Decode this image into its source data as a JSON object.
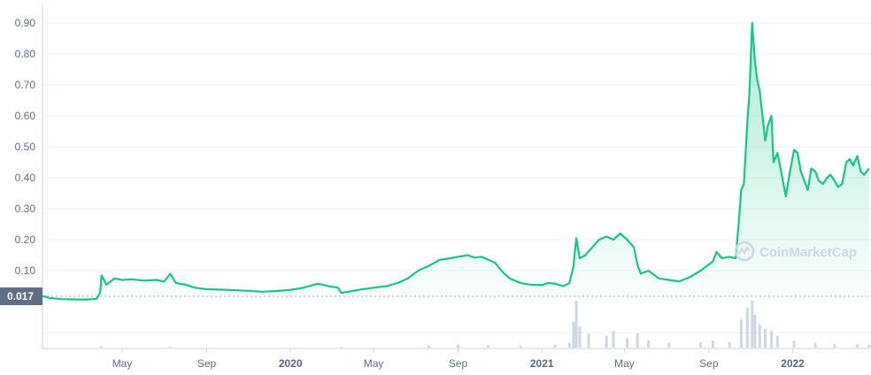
{
  "chart_data": {
    "type": "area",
    "y_ticks": [
      "0.90",
      "0.80",
      "0.70",
      "0.60",
      "0.50",
      "0.40",
      "0.30",
      "0.20",
      "0.10"
    ],
    "ylim": [
      0,
      0.93
    ],
    "reference_label": "0.017",
    "reference_value": 0.017,
    "x_ticks": [
      {
        "label": "May",
        "date": "2019-05-01",
        "major": false
      },
      {
        "label": "Sep",
        "date": "2019-09-01",
        "major": false
      },
      {
        "label": "2020",
        "date": "2020-01-01",
        "major": true
      },
      {
        "label": "May",
        "date": "2020-05-01",
        "major": false
      },
      {
        "label": "Sep",
        "date": "2020-09-01",
        "major": false
      },
      {
        "label": "2021",
        "date": "2021-01-01",
        "major": true
      },
      {
        "label": "May",
        "date": "2021-05-01",
        "major": false
      },
      {
        "label": "Sep",
        "date": "2021-09-01",
        "major": false
      },
      {
        "label": "2022",
        "date": "2022-01-01",
        "major": true
      }
    ],
    "xlim": [
      "2019-01-05",
      "2022-04-25"
    ],
    "line_color": "#16c784",
    "watermark": "CoinMarketCap",
    "price_series": [
      [
        "2019-01-05",
        0.018
      ],
      [
        "2019-01-15",
        0.012
      ],
      [
        "2019-02-01",
        0.008
      ],
      [
        "2019-02-20",
        0.007
      ],
      [
        "2019-03-10",
        0.007
      ],
      [
        "2019-03-25",
        0.009
      ],
      [
        "2019-03-30",
        0.03
      ],
      [
        "2019-04-01",
        0.085
      ],
      [
        "2019-04-08",
        0.055
      ],
      [
        "2019-04-20",
        0.075
      ],
      [
        "2019-05-01",
        0.07
      ],
      [
        "2019-05-15",
        0.072
      ],
      [
        "2019-06-01",
        0.068
      ],
      [
        "2019-06-20",
        0.07
      ],
      [
        "2019-07-01",
        0.065
      ],
      [
        "2019-07-10",
        0.09
      ],
      [
        "2019-07-18",
        0.06
      ],
      [
        "2019-08-01",
        0.055
      ],
      [
        "2019-08-15",
        0.045
      ],
      [
        "2019-09-01",
        0.04
      ],
      [
        "2019-10-01",
        0.038
      ],
      [
        "2019-11-01",
        0.035
      ],
      [
        "2019-11-20",
        0.032
      ],
      [
        "2019-12-10",
        0.034
      ],
      [
        "2020-01-01",
        0.038
      ],
      [
        "2020-01-20",
        0.045
      ],
      [
        "2020-02-10",
        0.058
      ],
      [
        "2020-02-25",
        0.05
      ],
      [
        "2020-03-10",
        0.045
      ],
      [
        "2020-03-15",
        0.028
      ],
      [
        "2020-03-25",
        0.032
      ],
      [
        "2020-04-15",
        0.04
      ],
      [
        "2020-05-01",
        0.045
      ],
      [
        "2020-05-20",
        0.05
      ],
      [
        "2020-06-05",
        0.06
      ],
      [
        "2020-06-20",
        0.075
      ],
      [
        "2020-07-05",
        0.1
      ],
      [
        "2020-07-20",
        0.115
      ],
      [
        "2020-08-05",
        0.135
      ],
      [
        "2020-08-20",
        0.14
      ],
      [
        "2020-09-01",
        0.145
      ],
      [
        "2020-09-15",
        0.15
      ],
      [
        "2020-09-25",
        0.142
      ],
      [
        "2020-10-05",
        0.145
      ],
      [
        "2020-10-15",
        0.135
      ],
      [
        "2020-10-25",
        0.125
      ],
      [
        "2020-11-05",
        0.095
      ],
      [
        "2020-11-15",
        0.075
      ],
      [
        "2020-12-01",
        0.06
      ],
      [
        "2020-12-15",
        0.055
      ],
      [
        "2021-01-01",
        0.053
      ],
      [
        "2021-01-10",
        0.06
      ],
      [
        "2021-01-20",
        0.058
      ],
      [
        "2021-02-01",
        0.05
      ],
      [
        "2021-02-10",
        0.06
      ],
      [
        "2021-02-16",
        0.115
      ],
      [
        "2021-02-20",
        0.205
      ],
      [
        "2021-02-25",
        0.14
      ],
      [
        "2021-03-05",
        0.15
      ],
      [
        "2021-03-15",
        0.175
      ],
      [
        "2021-03-25",
        0.2
      ],
      [
        "2021-04-05",
        0.21
      ],
      [
        "2021-04-15",
        0.2
      ],
      [
        "2021-04-25",
        0.22
      ],
      [
        "2021-05-05",
        0.2
      ],
      [
        "2021-05-15",
        0.175
      ],
      [
        "2021-05-20",
        0.12
      ],
      [
        "2021-05-25",
        0.09
      ],
      [
        "2021-06-05",
        0.1
      ],
      [
        "2021-06-20",
        0.075
      ],
      [
        "2021-07-05",
        0.07
      ],
      [
        "2021-07-20",
        0.065
      ],
      [
        "2021-08-05",
        0.08
      ],
      [
        "2021-08-20",
        0.1
      ],
      [
        "2021-09-01",
        0.12
      ],
      [
        "2021-09-07",
        0.13
      ],
      [
        "2021-09-12",
        0.16
      ],
      [
        "2021-09-20",
        0.14
      ],
      [
        "2021-10-01",
        0.145
      ],
      [
        "2021-10-10",
        0.14
      ],
      [
        "2021-10-15",
        0.27
      ],
      [
        "2021-10-18",
        0.36
      ],
      [
        "2021-10-22",
        0.38
      ],
      [
        "2021-10-27",
        0.58
      ],
      [
        "2021-10-30",
        0.67
      ],
      [
        "2021-11-03",
        0.9
      ],
      [
        "2021-11-07",
        0.78
      ],
      [
        "2021-11-10",
        0.72
      ],
      [
        "2021-11-14",
        0.68
      ],
      [
        "2021-11-18",
        0.6
      ],
      [
        "2021-11-22",
        0.52
      ],
      [
        "2021-11-26",
        0.57
      ],
      [
        "2021-12-01",
        0.6
      ],
      [
        "2021-12-04",
        0.45
      ],
      [
        "2021-12-10",
        0.48
      ],
      [
        "2021-12-16",
        0.41
      ],
      [
        "2021-12-22",
        0.34
      ],
      [
        "2021-12-28",
        0.42
      ],
      [
        "2022-01-03",
        0.49
      ],
      [
        "2022-01-08",
        0.48
      ],
      [
        "2022-01-13",
        0.42
      ],
      [
        "2022-01-18",
        0.39
      ],
      [
        "2022-01-23",
        0.36
      ],
      [
        "2022-01-28",
        0.43
      ],
      [
        "2022-02-03",
        0.42
      ],
      [
        "2022-02-08",
        0.39
      ],
      [
        "2022-02-14",
        0.38
      ],
      [
        "2022-02-20",
        0.4
      ],
      [
        "2022-02-25",
        0.41
      ],
      [
        "2022-03-03",
        0.39
      ],
      [
        "2022-03-08",
        0.37
      ],
      [
        "2022-03-14",
        0.38
      ],
      [
        "2022-03-20",
        0.45
      ],
      [
        "2022-03-25",
        0.46
      ],
      [
        "2022-03-30",
        0.44
      ],
      [
        "2022-04-05",
        0.47
      ],
      [
        "2022-04-10",
        0.42
      ],
      [
        "2022-04-15",
        0.41
      ],
      [
        "2022-04-22",
        0.43
      ]
    ],
    "volume_series": [
      [
        "2019-01-05",
        0.01
      ],
      [
        "2019-04-01",
        0.03
      ],
      [
        "2019-07-10",
        0.02
      ],
      [
        "2020-03-15",
        0.02
      ],
      [
        "2020-07-20",
        0.05
      ],
      [
        "2020-09-01",
        0.06
      ],
      [
        "2020-10-15",
        0.05
      ],
      [
        "2020-12-01",
        0.04
      ],
      [
        "2021-01-20",
        0.06
      ],
      [
        "2021-02-10",
        0.1
      ],
      [
        "2021-02-16",
        0.55
      ],
      [
        "2021-02-20",
        1.0
      ],
      [
        "2021-02-25",
        0.45
      ],
      [
        "2021-03-10",
        0.3
      ],
      [
        "2021-04-05",
        0.25
      ],
      [
        "2021-04-15",
        0.35
      ],
      [
        "2021-05-05",
        0.2
      ],
      [
        "2021-05-20",
        0.3
      ],
      [
        "2021-06-05",
        0.15
      ],
      [
        "2021-07-05",
        0.1
      ],
      [
        "2021-08-20",
        0.12
      ],
      [
        "2021-09-07",
        0.15
      ],
      [
        "2021-10-01",
        0.12
      ],
      [
        "2021-10-18",
        0.6
      ],
      [
        "2021-10-27",
        0.85
      ],
      [
        "2021-11-03",
        1.0
      ],
      [
        "2021-11-07",
        0.7
      ],
      [
        "2021-11-14",
        0.5
      ],
      [
        "2021-11-22",
        0.4
      ],
      [
        "2021-12-01",
        0.35
      ],
      [
        "2021-12-10",
        0.25
      ],
      [
        "2022-01-03",
        0.15
      ],
      [
        "2022-02-03",
        0.1
      ],
      [
        "2022-03-03",
        0.08
      ],
      [
        "2022-04-05",
        0.07
      ],
      [
        "2022-04-22",
        0.06
      ]
    ]
  }
}
